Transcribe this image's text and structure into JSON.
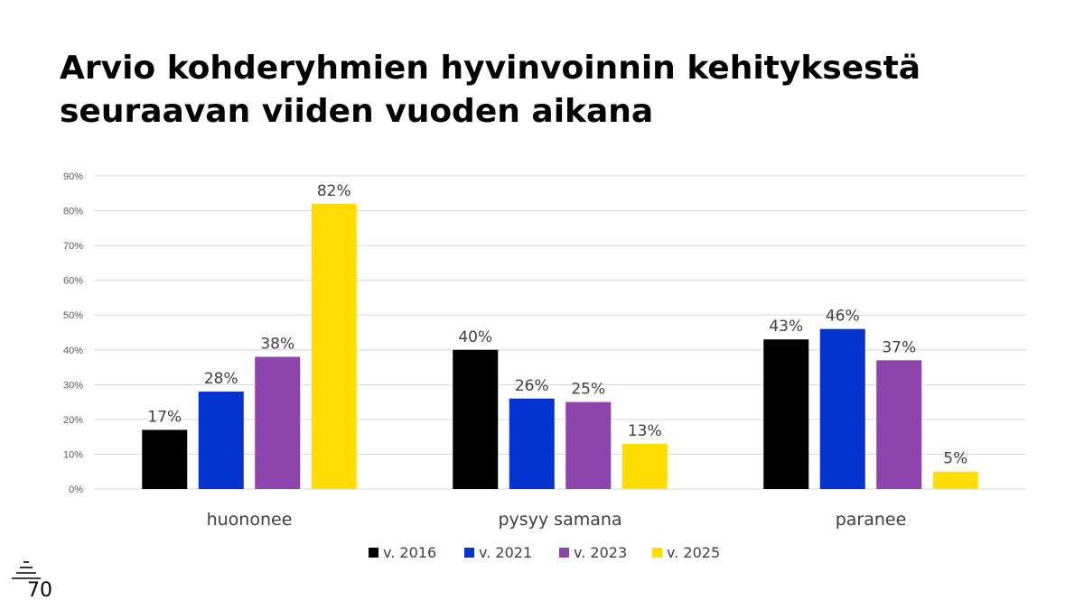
{
  "slide": {
    "title_line1": "Arvio kohderyhmien hyvinvoinnin kehityksestä",
    "title_line2": "seuraavan viiden vuoden aikana",
    "logo_text": "70"
  },
  "colors": {
    "v2016": "#000000",
    "v2021": "#0433d0",
    "v2023": "#8e44ad",
    "v2025": "#ffdd00",
    "grid": "#d9d9d9",
    "axis_text": "#595959",
    "label_text": "#404040"
  },
  "chart_data": {
    "type": "bar",
    "title": "Arvio kohderyhmien hyvinvoinnin kehityksestä seuraavan viiden vuoden aikana",
    "categories": [
      "huononee",
      "pysyy samana",
      "paranee"
    ],
    "series": [
      {
        "name": "v. 2016",
        "color_key": "v2016",
        "values": [
          17,
          40,
          43
        ],
        "labels": [
          "17%",
          "40%",
          "43%"
        ]
      },
      {
        "name": "v. 2021",
        "color_key": "v2021",
        "values": [
          28,
          26,
          46
        ],
        "labels": [
          "28%",
          "26%",
          "46%"
        ]
      },
      {
        "name": "v. 2023",
        "color_key": "v2023",
        "values": [
          38,
          25,
          37
        ],
        "labels": [
          "38%",
          "25%",
          "37%"
        ]
      },
      {
        "name": "v. 2025",
        "color_key": "v2025",
        "values": [
          82,
          13,
          5
        ],
        "labels": [
          "82%",
          "13%",
          "5%"
        ]
      }
    ],
    "y_ticks": [
      0,
      10,
      20,
      30,
      40,
      50,
      60,
      70,
      80,
      90
    ],
    "y_tick_labels": [
      "0%",
      "10%",
      "20%",
      "30%",
      "40%",
      "50%",
      "60%",
      "70%",
      "80%",
      "90%"
    ],
    "ylim": [
      0,
      90
    ],
    "xlabel": "",
    "ylabel": "",
    "grid": true,
    "legend_position": "bottom-center"
  }
}
